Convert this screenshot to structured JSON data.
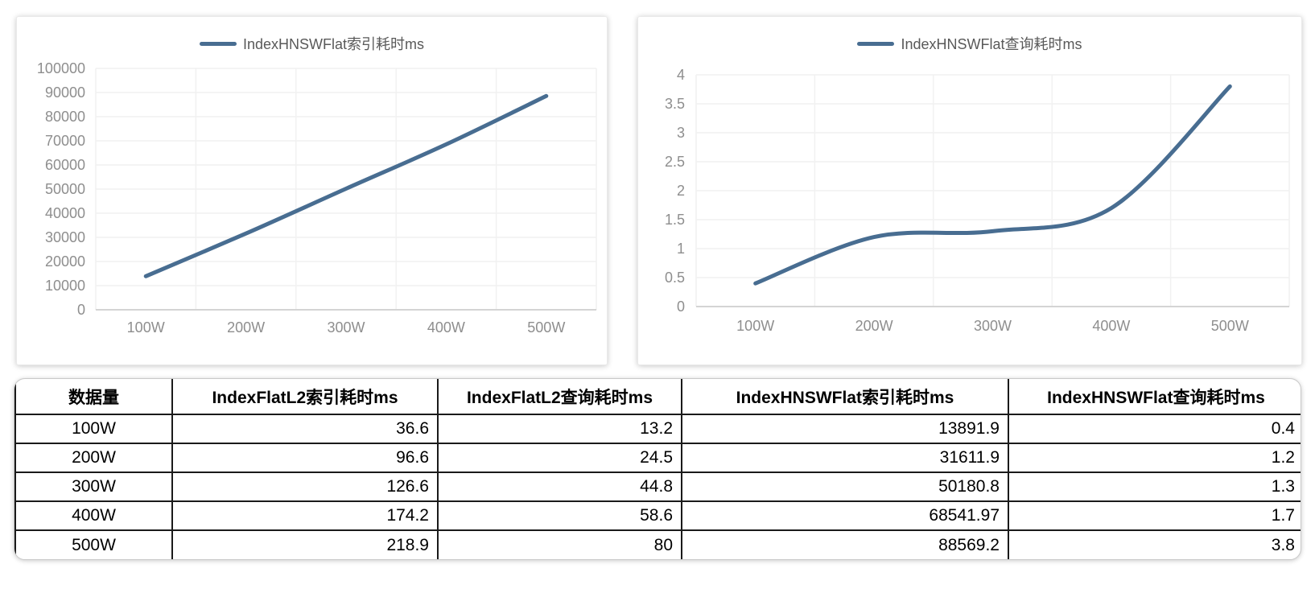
{
  "page": {
    "background": "#ffffff"
  },
  "chart_data": [
    {
      "type": "line",
      "title": "IndexHNSWFlat索引耗时ms",
      "legend_label": "IndexHNSWFlat索引耗时ms",
      "legend_position": "top-center",
      "line_color": "#486d91",
      "grid": true,
      "xlabel": "",
      "ylabel": "",
      "categories": [
        "100W",
        "200W",
        "300W",
        "400W",
        "500W"
      ],
      "values": [
        13891.9,
        31611.9,
        50180.8,
        68541.97,
        88569.2
      ],
      "ylim": [
        0,
        100000
      ],
      "y_ticks": [
        0,
        10000,
        20000,
        30000,
        40000,
        50000,
        60000,
        70000,
        80000,
        90000,
        100000
      ],
      "y_tick_labels": [
        "0",
        "10000",
        "20000",
        "30000",
        "40000",
        "50000",
        "60000",
        "70000",
        "80000",
        "90000",
        "100000"
      ]
    },
    {
      "type": "line",
      "title": "IndexHNSWFlat查询耗时ms",
      "legend_label": "IndexHNSWFlat查询耗时ms",
      "legend_position": "top-center",
      "line_color": "#486d91",
      "grid": true,
      "xlabel": "",
      "ylabel": "",
      "categories": [
        "100W",
        "200W",
        "300W",
        "400W",
        "500W"
      ],
      "values": [
        0.4,
        1.2,
        1.3,
        1.7,
        3.8
      ],
      "ylim": [
        0,
        4
      ],
      "y_ticks": [
        0,
        0.5,
        1,
        1.5,
        2,
        2.5,
        3,
        3.5,
        4
      ],
      "y_tick_labels": [
        "0",
        "0.5",
        "1",
        "1.5",
        "2",
        "2.5",
        "3",
        "3.5",
        "4"
      ]
    }
  ],
  "table": {
    "headers": [
      "数据量",
      "IndexFlatL2索引耗时ms",
      "IndexFlatL2查询耗时ms",
      "IndexHNSWFlat索引耗时ms",
      "IndexHNSWFlat查询耗时ms"
    ],
    "rows": [
      [
        "100W",
        "36.6",
        "13.2",
        "13891.9",
        "0.4"
      ],
      [
        "200W",
        "96.6",
        "24.5",
        "31611.9",
        "1.2"
      ],
      [
        "300W",
        "126.6",
        "44.8",
        "50180.8",
        "1.3"
      ],
      [
        "400W",
        "174.2",
        "58.6",
        "68541.97",
        "1.7"
      ],
      [
        "500W",
        "218.9",
        "80",
        "88569.2",
        "3.8"
      ]
    ]
  },
  "colors": {
    "line": "#486d91",
    "legend_text": "#595959",
    "axis_text": "#8e8e8e",
    "gridline": "#f1f1f1",
    "axis_line": "#d4d4d4",
    "table_border": "#1a1a1a"
  }
}
